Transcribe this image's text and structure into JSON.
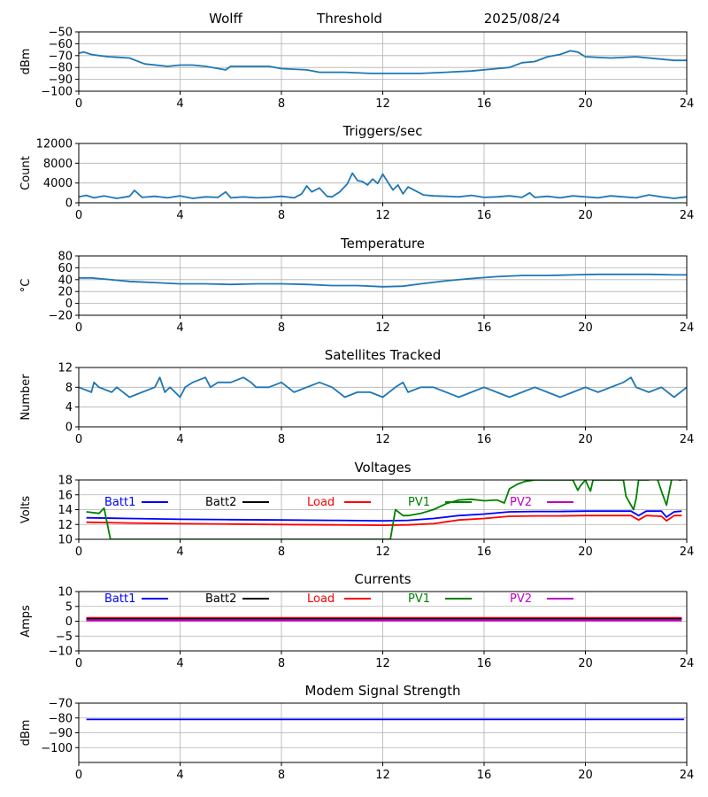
{
  "header": {
    "station": "Wolff",
    "mode": "Threshold",
    "date": "2025/08/24"
  },
  "colors": {
    "series_default": "#1f77b4",
    "batt1": "#0000ff",
    "batt2": "#000000",
    "load": "#ff0000",
    "pv1": "#008000",
    "pv2": "#bf00bf",
    "grid": "#b0b0b0"
  },
  "chart_data": [
    {
      "id": "threshold",
      "type": "line",
      "title": "",
      "ylabel": "dBm",
      "xlim": [
        0,
        24
      ],
      "ylim": [
        -100,
        -50
      ],
      "xticks": [
        0,
        4,
        8,
        12,
        16,
        20,
        24
      ],
      "yticks": [
        -100,
        -90,
        -80,
        -70,
        -60,
        -50
      ],
      "grid": true,
      "series": [
        {
          "color": "#1f77b4",
          "x": [
            0,
            0.2,
            0.5,
            0.8,
            1.2,
            2.0,
            2.6,
            3.5,
            4.0,
            4.5,
            5.0,
            5.8,
            6.0,
            7.5,
            8.0,
            9.0,
            9.5,
            10.5,
            11.5,
            12.5,
            13.5,
            14.5,
            15.5,
            16.5,
            17.0,
            17.5,
            18.0,
            18.5,
            19.0,
            19.4,
            19.7,
            20.0,
            21.0,
            22.0,
            23.0,
            23.5,
            24.0
          ],
          "y": [
            -68,
            -67,
            -69,
            -70,
            -71,
            -72,
            -77,
            -79,
            -78,
            -78,
            -79,
            -82,
            -79,
            -79,
            -81,
            -82,
            -84,
            -84,
            -85,
            -85,
            -85,
            -84,
            -83,
            -81,
            -80,
            -76,
            -75,
            -71,
            -69,
            -66,
            -67,
            -71,
            -72,
            -71,
            -73,
            -74,
            -74
          ]
        }
      ]
    },
    {
      "id": "triggers",
      "type": "line",
      "title": "Triggers/sec",
      "ylabel": "Count",
      "xlim": [
        0,
        24
      ],
      "ylim": [
        0,
        12000
      ],
      "xticks": [
        0,
        4,
        8,
        12,
        16,
        20,
        24
      ],
      "yticks": [
        0,
        4000,
        8000,
        12000
      ],
      "grid": true,
      "series": [
        {
          "color": "#1f77b4",
          "x": [
            0,
            0.3,
            0.6,
            1.0,
            1.5,
            2.0,
            2.2,
            2.5,
            3.0,
            3.5,
            4.0,
            4.5,
            5.0,
            5.5,
            5.8,
            6.0,
            6.5,
            7.0,
            7.5,
            8.0,
            8.5,
            8.8,
            9.0,
            9.2,
            9.5,
            9.8,
            10.0,
            10.3,
            10.6,
            10.8,
            11.0,
            11.2,
            11.4,
            11.6,
            11.8,
            12.0,
            12.2,
            12.4,
            12.6,
            12.8,
            13.0,
            13.3,
            13.6,
            14.0,
            14.5,
            15.0,
            15.5,
            16.0,
            16.5,
            17.0,
            17.5,
            17.8,
            18.0,
            18.5,
            19.0,
            19.5,
            20.0,
            20.5,
            21.0,
            21.5,
            22.0,
            22.5,
            23.0,
            23.5,
            24.0
          ],
          "y": [
            1200,
            1500,
            1000,
            1400,
            900,
            1300,
            2500,
            1100,
            1300,
            1000,
            1400,
            900,
            1200,
            1100,
            2200,
            1000,
            1200,
            1000,
            1100,
            1300,
            1000,
            1800,
            3400,
            2200,
            3000,
            1300,
            1200,
            2200,
            3800,
            6000,
            4500,
            4300,
            3600,
            4800,
            3900,
            5800,
            4200,
            2600,
            3600,
            1800,
            3200,
            2400,
            1600,
            1400,
            1300,
            1200,
            1500,
            1100,
            1200,
            1400,
            1100,
            2000,
            1100,
            1300,
            1000,
            1400,
            1200,
            1000,
            1400,
            1200,
            1000,
            1600,
            1200,
            900,
            1200
          ]
        }
      ]
    },
    {
      "id": "temperature",
      "type": "line",
      "title": "Temperature",
      "ylabel": "°C",
      "xlim": [
        0,
        24
      ],
      "ylim": [
        -20,
        80
      ],
      "xticks": [
        0,
        4,
        8,
        12,
        16,
        20,
        24
      ],
      "yticks": [
        -20,
        0,
        20,
        40,
        60,
        80
      ],
      "grid": true,
      "series": [
        {
          "color": "#1f77b4",
          "x": [
            0,
            0.5,
            1,
            2,
            3,
            4,
            5,
            6,
            7,
            8,
            9,
            10,
            11,
            12,
            12.8,
            13.5,
            14.5,
            15.5,
            16.5,
            17.5,
            18.5,
            19.5,
            20.5,
            21.5,
            22.5,
            23.5,
            24
          ],
          "y": [
            43,
            43,
            41,
            37,
            35,
            33,
            33,
            32,
            33,
            33,
            32,
            30,
            30,
            28,
            29,
            33,
            38,
            42,
            45,
            47,
            47,
            48,
            49,
            49,
            49,
            48,
            48
          ]
        }
      ]
    },
    {
      "id": "satellites",
      "type": "line",
      "title": "Satellites Tracked",
      "ylabel": "Number",
      "xlim": [
        0,
        24
      ],
      "ylim": [
        0,
        12
      ],
      "xticks": [
        0,
        4,
        8,
        12,
        16,
        20,
        24
      ],
      "yticks": [
        0,
        4,
        8,
        12
      ],
      "grid": true,
      "series": [
        {
          "color": "#1f77b4",
          "x": [
            0,
            0.5,
            0.6,
            0.8,
            1.3,
            1.5,
            2.0,
            2.5,
            3.0,
            3.2,
            3.4,
            3.6,
            4.0,
            4.2,
            4.5,
            5.0,
            5.2,
            5.5,
            6.0,
            6.5,
            6.8,
            7.0,
            7.5,
            8.0,
            8.5,
            9.0,
            9.5,
            10.0,
            10.5,
            11.0,
            11.5,
            12.0,
            12.5,
            12.8,
            13.0,
            13.5,
            14.0,
            14.5,
            15.0,
            15.5,
            16.0,
            16.5,
            17.0,
            17.5,
            18.0,
            18.5,
            19.0,
            19.5,
            20.0,
            20.5,
            21.0,
            21.5,
            21.8,
            22.0,
            22.5,
            23.0,
            23.5,
            24.0
          ],
          "y": [
            8,
            7,
            9,
            8,
            7,
            8,
            6,
            7,
            8,
            10,
            7,
            8,
            6,
            8,
            9,
            10,
            8,
            9,
            9,
            10,
            9,
            8,
            8,
            9,
            7,
            8,
            9,
            8,
            6,
            7,
            7,
            6,
            8,
            9,
            7,
            8,
            8,
            7,
            6,
            7,
            8,
            7,
            6,
            7,
            8,
            7,
            6,
            7,
            8,
            7,
            8,
            9,
            10,
            8,
            7,
            8,
            6,
            8
          ]
        }
      ]
    },
    {
      "id": "voltages",
      "type": "line",
      "title": "Voltages",
      "ylabel": "Volts",
      "xlim": [
        0,
        24
      ],
      "ylim": [
        10,
        18
      ],
      "xticks": [
        0,
        4,
        8,
        12,
        16,
        20,
        24
      ],
      "yticks": [
        10,
        12,
        14,
        16,
        18
      ],
      "grid": true,
      "legend": [
        "Batt1",
        "Batt2",
        "Load",
        "PV1",
        "PV2"
      ],
      "series": [
        {
          "name": "Batt1",
          "color": "#0000ff",
          "x": [
            0.3,
            2,
            4,
            6,
            8,
            10,
            12,
            13,
            14,
            15,
            16,
            17,
            18,
            19,
            20,
            21,
            21.8,
            22.1,
            22.4,
            23,
            23.2,
            23.5,
            23.8
          ],
          "y": [
            12.9,
            12.8,
            12.7,
            12.65,
            12.6,
            12.55,
            12.5,
            12.55,
            12.8,
            13.2,
            13.4,
            13.7,
            13.75,
            13.75,
            13.8,
            13.8,
            13.8,
            13.2,
            13.8,
            13.8,
            13.0,
            13.7,
            13.8
          ]
        },
        {
          "name": "Load",
          "color": "#ff0000",
          "x": [
            0.3,
            2,
            4,
            6,
            8,
            10,
            12,
            13,
            14,
            15,
            16,
            17,
            18,
            19,
            20,
            21,
            21.8,
            22.1,
            22.4,
            23,
            23.2,
            23.5,
            23.8
          ],
          "y": [
            12.3,
            12.2,
            12.1,
            12.05,
            12.0,
            11.95,
            11.9,
            11.95,
            12.1,
            12.6,
            12.8,
            13.1,
            13.15,
            13.15,
            13.2,
            13.2,
            13.2,
            12.6,
            13.2,
            13.1,
            12.5,
            13.2,
            13.2
          ]
        },
        {
          "name": "PV1",
          "color": "#008000",
          "x": [
            0.3,
            0.8,
            1.0,
            1.25,
            12.3,
            12.5,
            12.8,
            13.0,
            13.5,
            14.0,
            14.5,
            15.0,
            15.5,
            16.0,
            16.5,
            16.8,
            17.0,
            17.3,
            17.6,
            18.0,
            19.5,
            19.7,
            19.8,
            20.0,
            20.1,
            20.2,
            20.3,
            21.5,
            21.6,
            21.9,
            22.0,
            22.1,
            22.5,
            22.8,
            23.0,
            23.2,
            23.4,
            23.6,
            23.7,
            23.8
          ],
          "y": [
            13.7,
            13.5,
            14.2,
            10.0,
            10.0,
            14.0,
            13.2,
            13.2,
            13.5,
            14.0,
            14.8,
            15.3,
            15.4,
            15.2,
            15.3,
            14.9,
            16.8,
            17.4,
            17.8,
            18.0,
            18.0,
            16.6,
            17.2,
            18.0,
            17.2,
            16.5,
            18.0,
            18.0,
            15.8,
            14.0,
            15.5,
            18.0,
            18.0,
            18.5,
            16.5,
            14.6,
            18.0,
            19.5,
            18.0,
            18.0
          ]
        }
      ]
    },
    {
      "id": "currents",
      "type": "line",
      "title": "Currents",
      "ylabel": "Amps",
      "xlim": [
        0,
        24
      ],
      "ylim": [
        -10,
        10
      ],
      "xticks": [
        0,
        4,
        8,
        12,
        16,
        20,
        24
      ],
      "yticks": [
        -10,
        -5,
        0,
        5,
        10
      ],
      "grid": true,
      "legend": [
        "Batt1",
        "Batt2",
        "Load",
        "PV1",
        "PV2"
      ],
      "series": [
        {
          "name": "Load",
          "color": "#ff0000",
          "x": [
            0.3,
            23.8
          ],
          "y": [
            1.0,
            1.0
          ]
        },
        {
          "name": "Batt2",
          "color": "#000000",
          "x": [
            0.3,
            23.8
          ],
          "y": [
            0.7,
            0.7
          ]
        },
        {
          "name": "PV2",
          "color": "#bf00bf",
          "x": [
            0.3,
            23.8
          ],
          "y": [
            0.3,
            0.3
          ]
        }
      ]
    },
    {
      "id": "modem",
      "type": "line",
      "title": "Modem Signal Strength",
      "ylabel": "dBm",
      "xlim": [
        0,
        24
      ],
      "ylim": [
        -110,
        -70
      ],
      "xticks": [
        0,
        4,
        8,
        12,
        16,
        20,
        24
      ],
      "yticks": [
        -100,
        -90,
        -80,
        -70
      ],
      "grid": true,
      "series": [
        {
          "color": "#0000ff",
          "x": [
            0.3,
            23.9
          ],
          "y": [
            -81,
            -81
          ]
        }
      ]
    }
  ]
}
